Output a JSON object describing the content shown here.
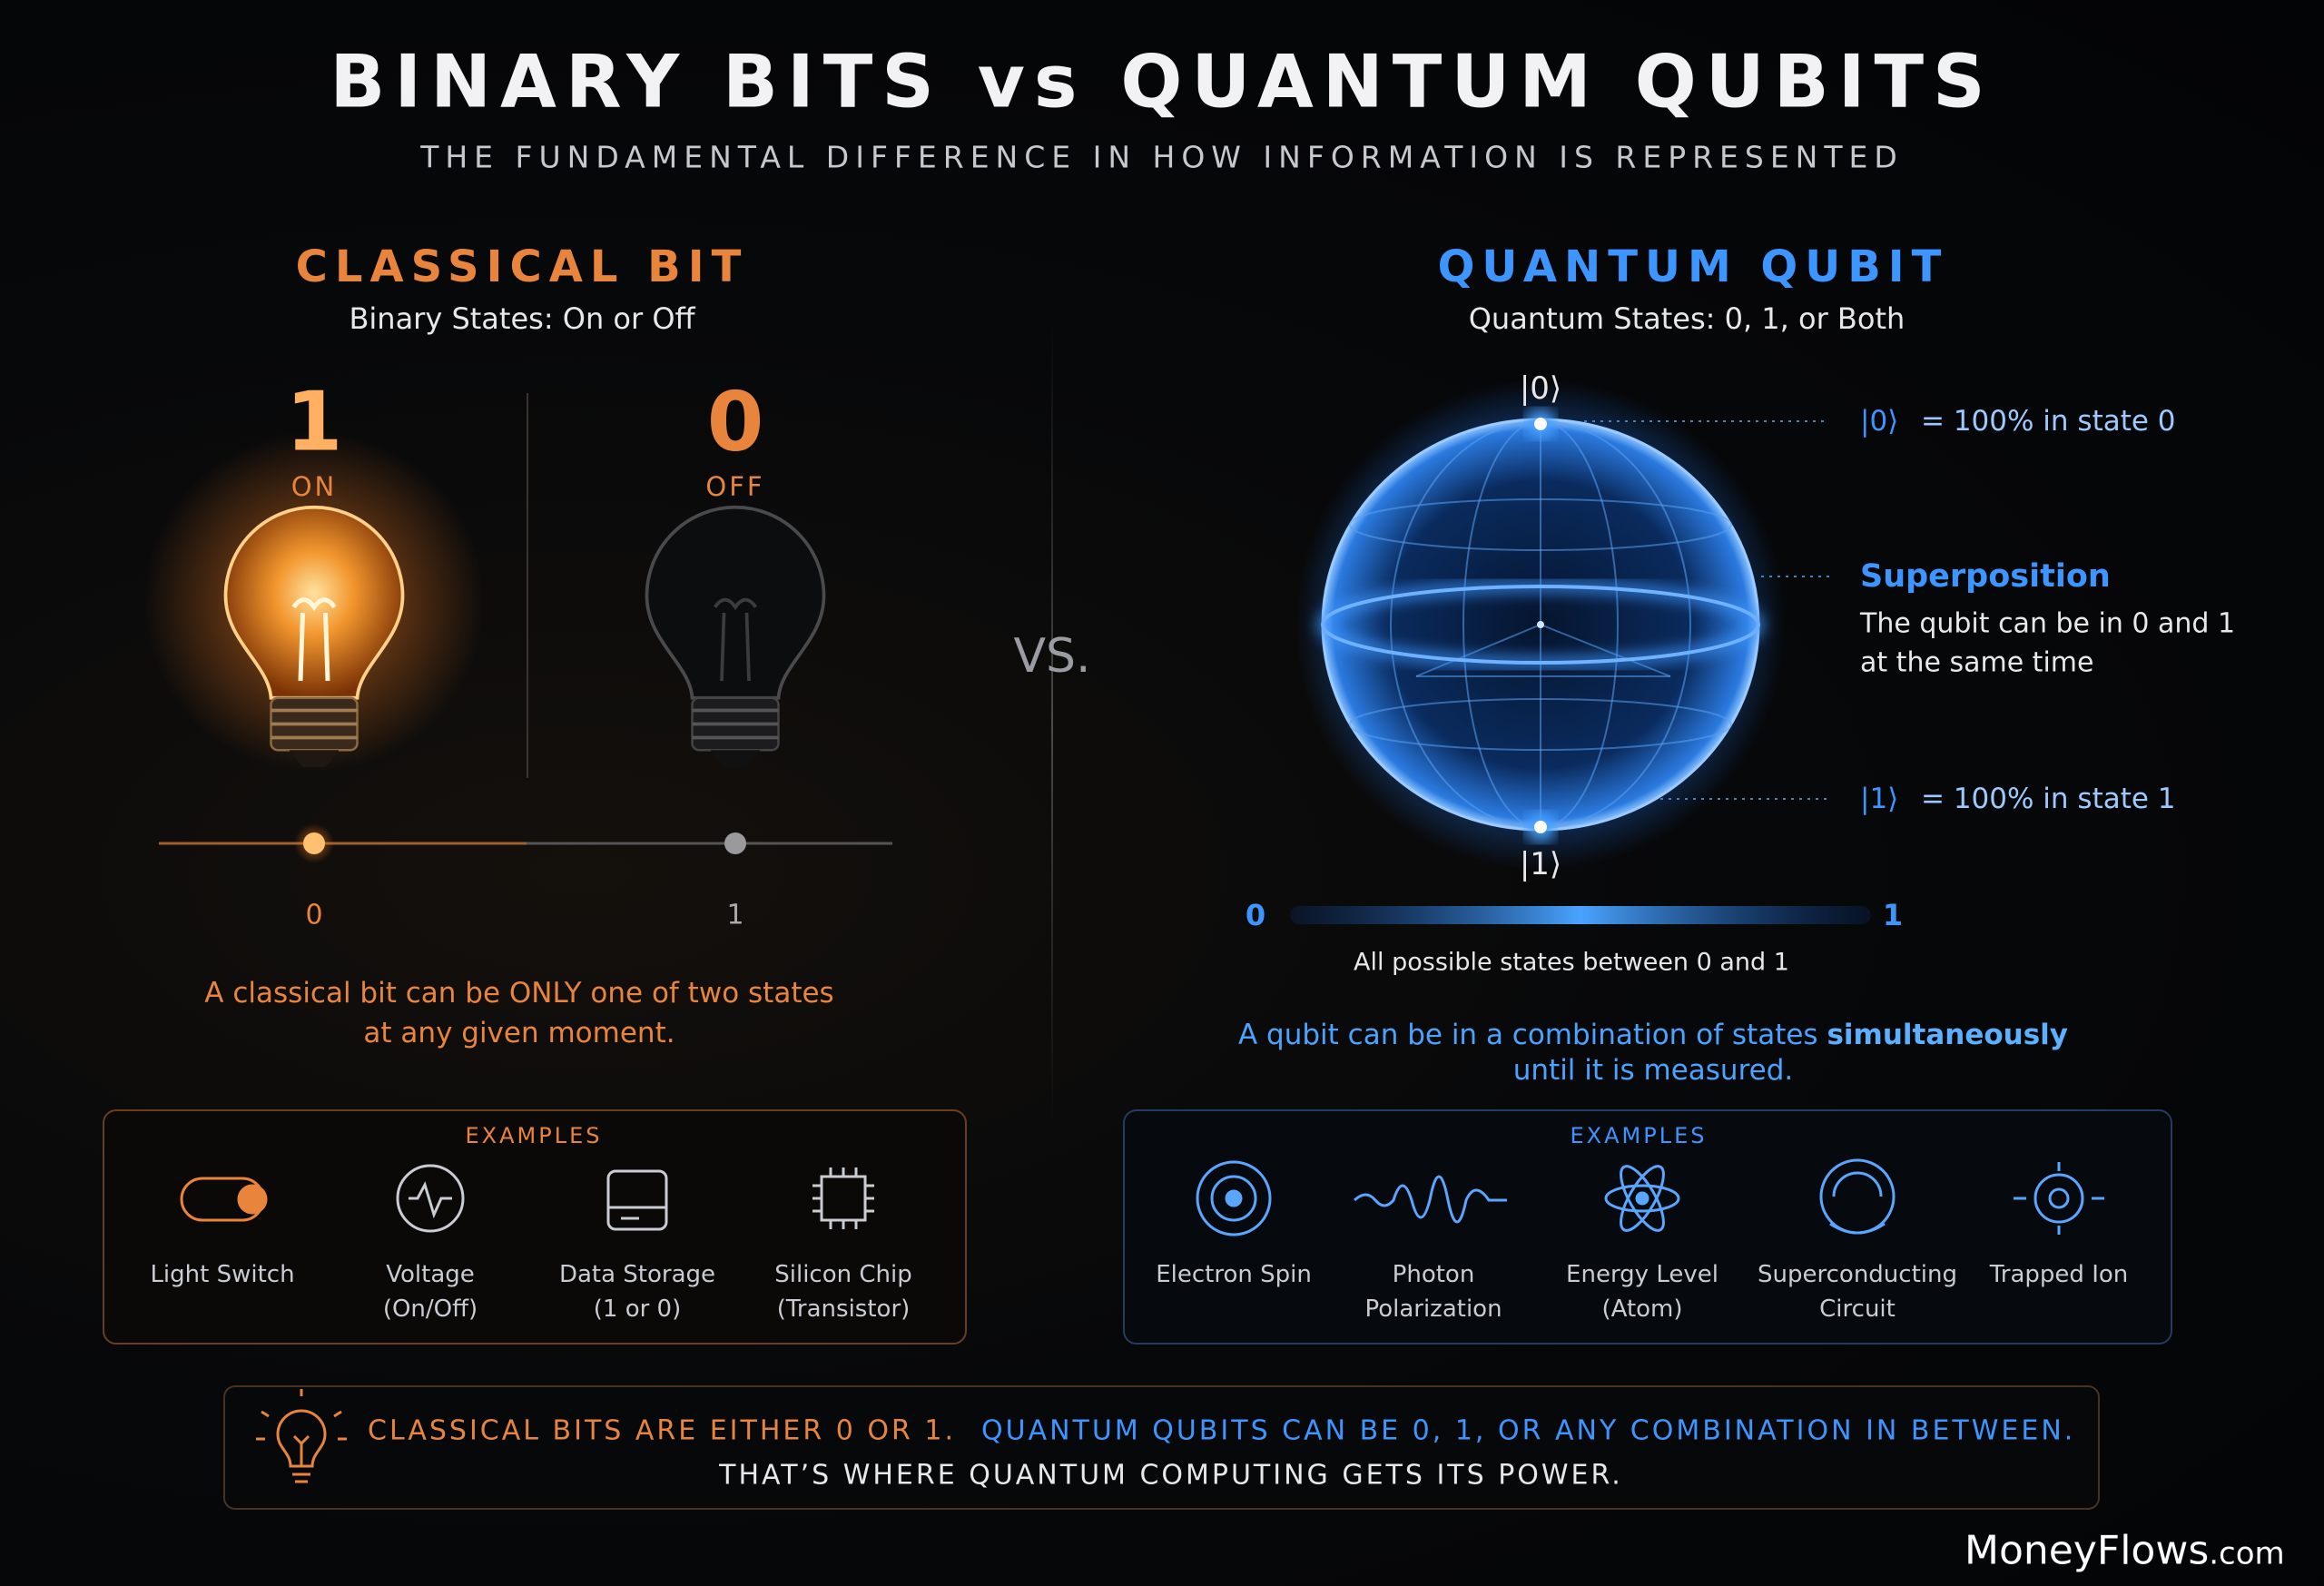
{
  "header": {
    "title": "BINARY BITS vs QUANTUM QUBITS",
    "subtitle": "THE FUNDAMENTAL DIFFERENCE IN HOW INFORMATION IS REPRESENTED"
  },
  "classical": {
    "title": "CLASSICAL BIT",
    "subtitle": "Binary States: On or Off",
    "states": [
      {
        "digit": "1",
        "label": "ON"
      },
      {
        "digit": "0",
        "label": "OFF"
      }
    ],
    "scale_labels": [
      "0",
      "1"
    ],
    "description": [
      "A classical bit can be ONLY one of two states",
      "at any given moment."
    ],
    "examples": {
      "heading": "EXAMPLES",
      "items": [
        [
          "Light Switch"
        ],
        [
          "Voltage",
          "(On/Off)"
        ],
        [
          "Data Storage",
          "(1 or 0)"
        ],
        [
          "Silicon Chip",
          "(Transistor)"
        ]
      ]
    }
  },
  "vs": "VS.",
  "quantum": {
    "title": "QUANTUM QUBIT",
    "subtitle": "Quantum States: 0, 1, or Both",
    "sphere_labels": {
      "top": "|0⟩",
      "bottom": "|1⟩"
    },
    "annotations": {
      "state0": {
        "ket": "|0⟩",
        "text": "= 100% in state 0"
      },
      "superposition": {
        "title": "Superposition",
        "lines": [
          "The qubit can be in 0 and 1",
          "at the same time"
        ]
      },
      "state1": {
        "ket": "|1⟩",
        "text": "= 100% in state 1"
      }
    },
    "scale_labels": [
      "0",
      "1"
    ],
    "scale_caption": "All possible states between 0 and 1",
    "description": {
      "line1": "A qubit can be in a combination of states",
      "emphasis": "simultaneously",
      "line2": "until it is measured."
    },
    "examples": {
      "heading": "EXAMPLES",
      "items": [
        [
          "Electron Spin"
        ],
        [
          "Photon",
          "Polarization"
        ],
        [
          "Energy Level",
          "(Atom)"
        ],
        [
          "Superconducting",
          "Circuit"
        ],
        [
          "Trapped Ion"
        ]
      ]
    }
  },
  "footer": {
    "classical": "CLASSICAL BITS ARE EITHER 0 OR 1.",
    "quantum": "QUANTUM QUBITS CAN BE 0, 1, OR ANY COMBINATION IN BETWEEN.",
    "conclusion": "THAT’S WHERE QUANTUM COMPUTING GETS ITS POWER."
  },
  "watermark": {
    "brand": "MoneyFlows",
    "suffix": ".com"
  }
}
